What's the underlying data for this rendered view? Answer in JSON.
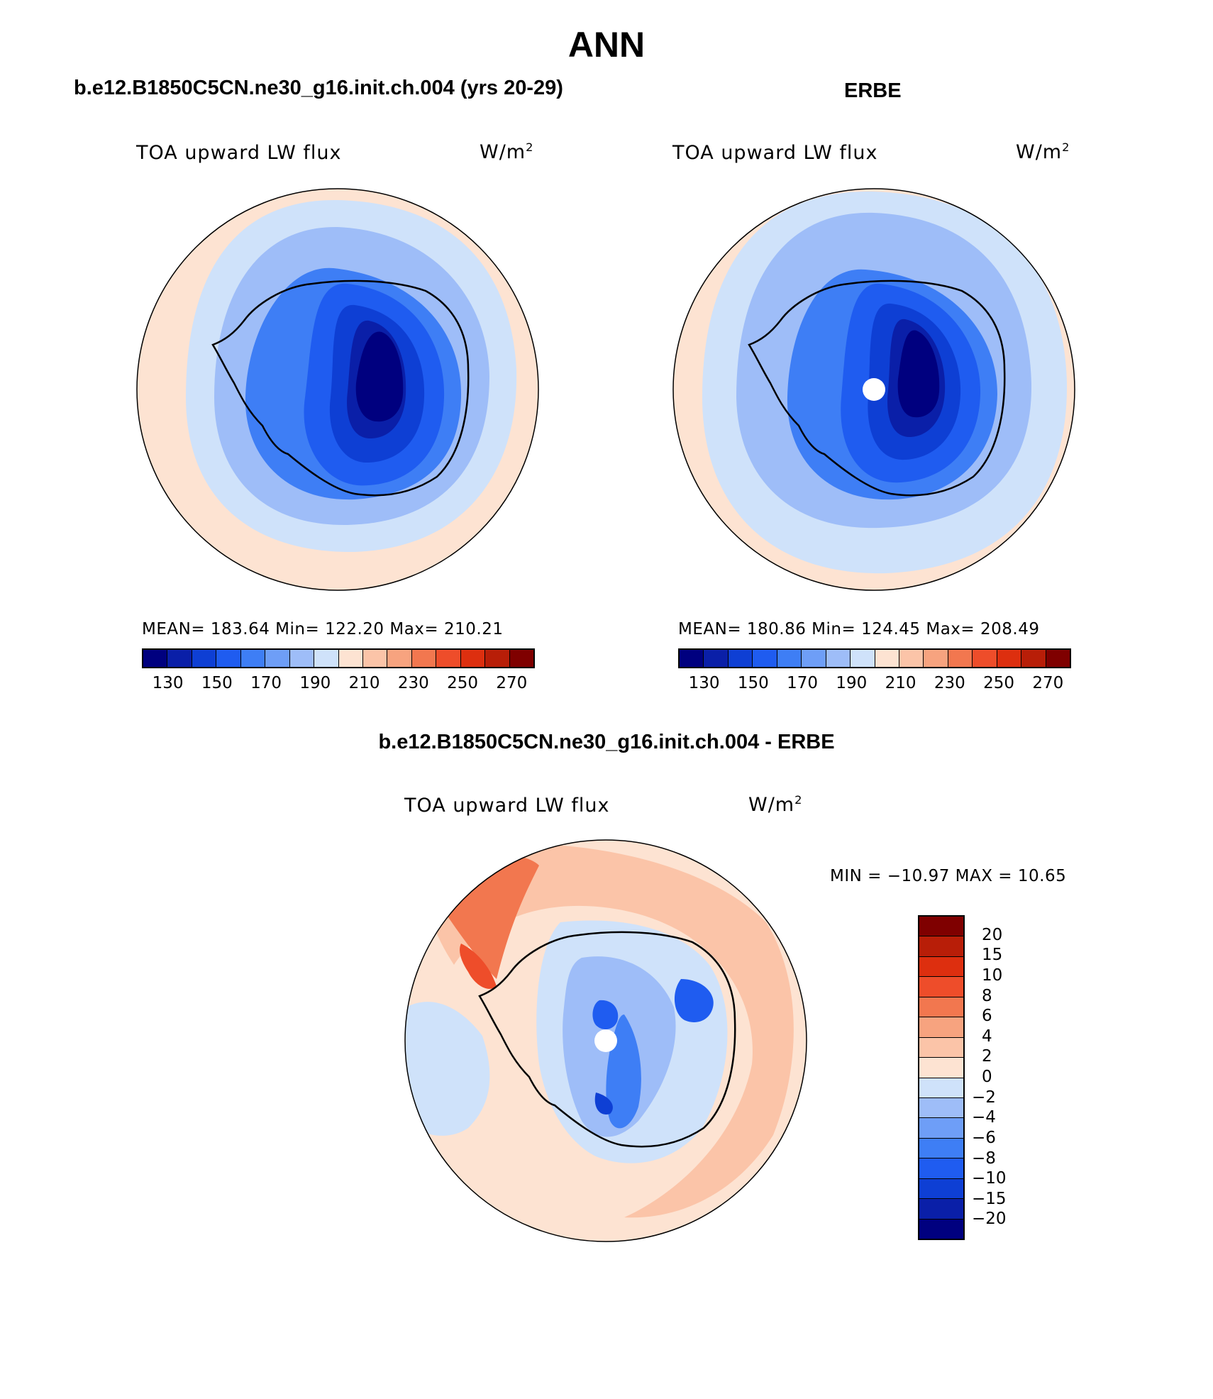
{
  "page_title": "ANN",
  "panels": [
    {
      "id": "model",
      "header": "b.e12.B1850C5CN.ne30_g16.init.ch.004 (yrs 20-29)",
      "variable": "TOA upward LW flux",
      "units_base": "W/m",
      "units_exp": "2",
      "stats": "MEAN= 183.64   Min= 122.20   Max= 210.21"
    },
    {
      "id": "obs",
      "header": "ERBE",
      "variable": "TOA upward LW flux",
      "units_base": "W/m",
      "units_exp": "2",
      "stats": "MEAN= 180.86   Min= 124.45   Max= 208.49"
    },
    {
      "id": "diff",
      "header": "b.e12.B1850C5CN.ne30_g16.init.ch.004 - ERBE",
      "variable": "TOA upward LW flux",
      "units_base": "W/m",
      "units_exp": "2",
      "stats": "MIN = −10.97  MAX =   10.65"
    }
  ],
  "chart_data": [
    {
      "type": "heatmap",
      "projection": "south-polar-stereographic",
      "title": "TOA upward LW flux",
      "units": "W/m2",
      "mean": 183.64,
      "min": 122.2,
      "max": 210.21,
      "colorbar_ticks": [
        "130",
        "150",
        "170",
        "190",
        "210",
        "230",
        "250",
        "270"
      ],
      "levels": [
        130,
        140,
        150,
        160,
        170,
        180,
        190,
        200,
        210,
        220,
        230,
        240,
        250,
        260,
        270
      ]
    },
    {
      "type": "heatmap",
      "projection": "south-polar-stereographic",
      "title": "TOA upward LW flux",
      "units": "W/m2",
      "mean": 180.86,
      "min": 124.45,
      "max": 208.49,
      "colorbar_ticks": [
        "130",
        "150",
        "170",
        "190",
        "210",
        "230",
        "250",
        "270"
      ],
      "levels": [
        130,
        140,
        150,
        160,
        170,
        180,
        190,
        200,
        210,
        220,
        230,
        240,
        250,
        260,
        270
      ]
    },
    {
      "type": "heatmap",
      "projection": "south-polar-stereographic",
      "title": "TOA upward LW flux",
      "units": "W/m2",
      "min": -10.97,
      "max": 10.65,
      "colorbar_ticks": [
        "20",
        "15",
        "10",
        "8",
        "6",
        "4",
        "2",
        "0",
        "−2",
        "−4",
        "−6",
        "−8",
        "−10",
        "−15",
        "−20"
      ],
      "levels": [
        -20,
        -15,
        -10,
        -8,
        -6,
        -4,
        -2,
        0,
        2,
        4,
        6,
        8,
        10,
        15,
        20
      ]
    }
  ],
  "colors": {
    "palette16": [
      "#00007f",
      "#0a1fa8",
      "#0e3fd4",
      "#1f5cf0",
      "#3e7ef5",
      "#6e9ef7",
      "#9ebdf8",
      "#cfe2fa",
      "#fde3d2",
      "#fbc4a8",
      "#f7a37f",
      "#f2774f",
      "#ee4d2a",
      "#dd2f0f",
      "#b81e08",
      "#7f0000"
    ],
    "land": "#ffffff",
    "outline": "#000000"
  }
}
